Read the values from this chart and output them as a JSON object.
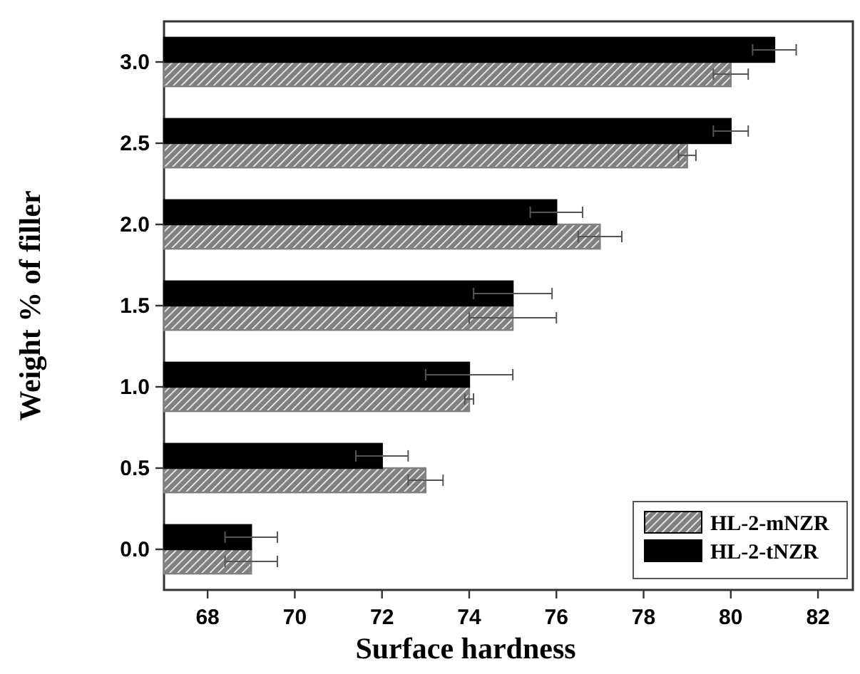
{
  "chart_data": {
    "type": "bar",
    "orientation": "horizontal",
    "xlabel": "Surface hardness",
    "ylabel": "Weight % of filler",
    "categories": [
      "3.0",
      "2.5",
      "2.0",
      "1.5",
      "1.0",
      "0.5",
      "0.0"
    ],
    "series": [
      {
        "name": "HL-2-mNZR",
        "color": "#808080",
        "values": [
          80,
          79,
          77,
          75,
          74,
          73,
          69
        ],
        "errors": [
          0.4,
          0.2,
          0.5,
          1.0,
          0.1,
          0.4,
          0.6
        ]
      },
      {
        "name": "HL-2-tNZR",
        "color": "#000000",
        "values": [
          81,
          80,
          76,
          75,
          74,
          72,
          69
        ],
        "errors": [
          0.5,
          0.4,
          0.6,
          0.9,
          1.0,
          0.6,
          0.6
        ]
      }
    ],
    "xlim": [
      67,
      82.8
    ],
    "xticks": [
      68,
      70,
      72,
      74,
      76,
      78,
      80,
      82
    ],
    "grid": false,
    "legend": "bottom right"
  }
}
